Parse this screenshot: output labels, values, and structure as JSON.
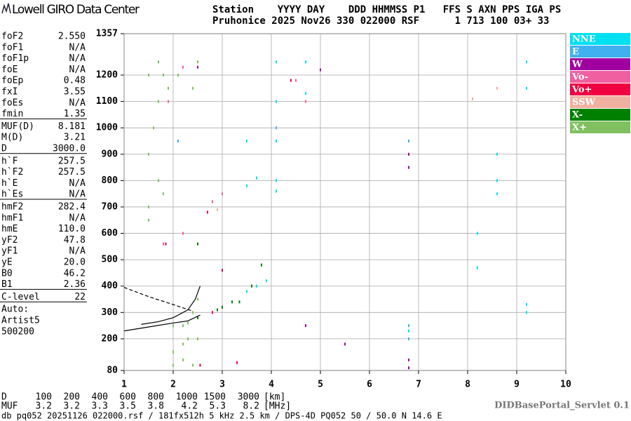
{
  "header": {
    "logo": "Lowell GIRO Data Center",
    "line1": "Station    YYYY DAY    DDD HHMMSS P1   FFS S AXN PPS IGA PS",
    "line2": "Pruhonice 2025 Nov26 330 022000 RSF      1 713 100 03+ 33"
  },
  "parameters": [
    [
      {
        "name": "foF2",
        "value": "2.550"
      },
      {
        "name": "foF1",
        "value": "N/A"
      },
      {
        "name": "foF1p",
        "value": "N/A"
      },
      {
        "name": "foE",
        "value": "N/A"
      },
      {
        "name": "foEp",
        "value": "0.48"
      },
      {
        "name": "fxI",
        "value": "3.55"
      },
      {
        "name": "foEs",
        "value": "N/A"
      },
      {
        "name": "fmin",
        "value": "1.35"
      }
    ],
    [
      {
        "name": "MUF(D)",
        "value": "8.181"
      },
      {
        "name": "M(D)",
        "value": "3.21"
      },
      {
        "name": "D",
        "value": "3000.0"
      }
    ],
    [
      {
        "name": "h`F",
        "value": "257.5"
      },
      {
        "name": "h`F2",
        "value": "257.5"
      },
      {
        "name": "h`E",
        "value": "N/A"
      },
      {
        "name": "h`Es",
        "value": "N/A"
      }
    ],
    [
      {
        "name": "hmF2",
        "value": "282.4"
      },
      {
        "name": "hmF1",
        "value": "N/A"
      },
      {
        "name": "hmE",
        "value": "110.0"
      },
      {
        "name": "yF2",
        "value": "47.8"
      },
      {
        "name": "yF1",
        "value": "N/A"
      },
      {
        "name": "yE",
        "value": "20.0"
      },
      {
        "name": "B0",
        "value": "46.2"
      },
      {
        "name": "B1",
        "value": "2.36"
      }
    ],
    [
      {
        "name": "C-level",
        "value": "22"
      }
    ]
  ],
  "auto": [
    "Auto:",
    "Artist5",
    "500200"
  ],
  "chart_data": {
    "type": "scatter",
    "legend": "right",
    "grid": true,
    "xlim": [
      1,
      10
    ],
    "xticks": [
      1,
      2,
      3,
      4,
      5,
      6,
      7,
      8,
      9,
      10
    ],
    "ylim": [
      80,
      1357
    ],
    "yticks": [
      80,
      200,
      300,
      400,
      500,
      600,
      700,
      800,
      900,
      1000,
      1100,
      1200,
      1357
    ],
    "series": [
      {
        "name": "NNE",
        "color": "#00e0f0",
        "x": [
          4.1,
          4.1,
          4.1,
          4.1,
          4.1,
          3.5,
          3.5,
          3.7,
          3.9,
          3.7,
          3.5,
          8.6,
          8.6,
          8.6,
          9.2,
          9.2,
          9.2,
          9.2,
          8.2,
          8.2,
          4.7,
          4.7,
          6.8
        ],
        "values": [
          1250,
          1100,
          950,
          800,
          760,
          950,
          780,
          810,
          420,
          400,
          380,
          900,
          800,
          750,
          1250,
          1150,
          330,
          300,
          600,
          470,
          1250,
          1130,
          230
        ]
      },
      {
        "name": "E",
        "color": "#40b0f0",
        "x": [
          6.8,
          6.8,
          6.8,
          2.1,
          4.1
        ],
        "values": [
          250,
          200,
          950,
          950,
          1000
        ]
      },
      {
        "name": "W",
        "color": "#a000a0",
        "x": [
          6.8,
          6.8,
          6.8,
          6.8,
          4.7,
          5.5,
          5.0,
          2.5
        ],
        "values": [
          900,
          850,
          120,
          90,
          250,
          180,
          1220,
          1230
        ]
      },
      {
        "name": "Vo-",
        "color": "#f060a0",
        "x": [
          1.9,
          2.2,
          1.8,
          2.2,
          2.8,
          3.0,
          4.5,
          4.7
        ],
        "values": [
          1100,
          1230,
          560,
          600,
          720,
          750,
          1180,
          1100
        ]
      },
      {
        "name": "Vo+",
        "color": "#f00040",
        "x": [
          1.85,
          2.8,
          3.0,
          4.4,
          2.7,
          2.55,
          3.3
        ],
        "values": [
          560,
          300,
          460,
          1180,
          680,
          100,
          110
        ]
      },
      {
        "name": "SSW",
        "color": "#f0b0a0",
        "x": [
          8.6,
          8.1,
          2.9
        ],
        "values": [
          1150,
          1110,
          690
        ]
      },
      {
        "name": "X-",
        "color": "#008000",
        "x": [
          2.9,
          3.0,
          3.2,
          3.35,
          3.6,
          3.8,
          2.5,
          2.5
        ],
        "values": [
          310,
          320,
          340,
          340,
          400,
          480,
          280,
          560
        ]
      },
      {
        "name": "X+",
        "color": "#80c060",
        "x": [
          1.5,
          1.5,
          1.5,
          1.5,
          1.6,
          1.7,
          1.7,
          1.7,
          1.8,
          1.9,
          1.8,
          2.0,
          2.0,
          2.0,
          2.1,
          2.2,
          2.2,
          2.2,
          2.3,
          2.3,
          2.4,
          2.4,
          2.4,
          2.5,
          2.5,
          2.5
        ],
        "values": [
          1200,
          900,
          700,
          650,
          1000,
          1100,
          800,
          1250,
          1200,
          1150,
          750,
          250,
          150,
          100,
          1200,
          250,
          180,
          120,
          260,
          200,
          1150,
          300,
          100,
          1250,
          350,
          200
        ]
      }
    ],
    "lines": [
      {
        "style": "solid",
        "x": [
          1.35,
          1.7,
          2.0,
          2.3,
          2.45,
          2.55
        ],
        "values": [
          255,
          265,
          280,
          310,
          350,
          400
        ]
      },
      {
        "style": "solid",
        "x": [
          1.0,
          1.5,
          2.0,
          2.3,
          2.55
        ],
        "values": [
          230,
          245,
          260,
          268,
          290
        ]
      },
      {
        "style": "dashed",
        "x": [
          1.0,
          1.5,
          2.0,
          2.4
        ],
        "values": [
          395,
          360,
          330,
          305
        ]
      }
    ]
  },
  "muf_table": [
    {
      "label": "D",
      "values": [
        100,
        200,
        400,
        600,
        800,
        1000,
        1500,
        3000
      ],
      "unit": "[km]"
    },
    {
      "label": "MUF",
      "values": [
        3.2,
        3.2,
        3.3,
        3.5,
        3.8,
        4.2,
        5.3,
        8.2
      ],
      "unit": "[MHz]"
    }
  ],
  "servlet": "DIDBasePortal_Servlet 0.1",
  "footer": "db pq052 20251126 022000.rsf / 181fx512h 5 kHz 2.5 km / DPS-4D PQ052 50 / 50.0 N 14.6 E"
}
